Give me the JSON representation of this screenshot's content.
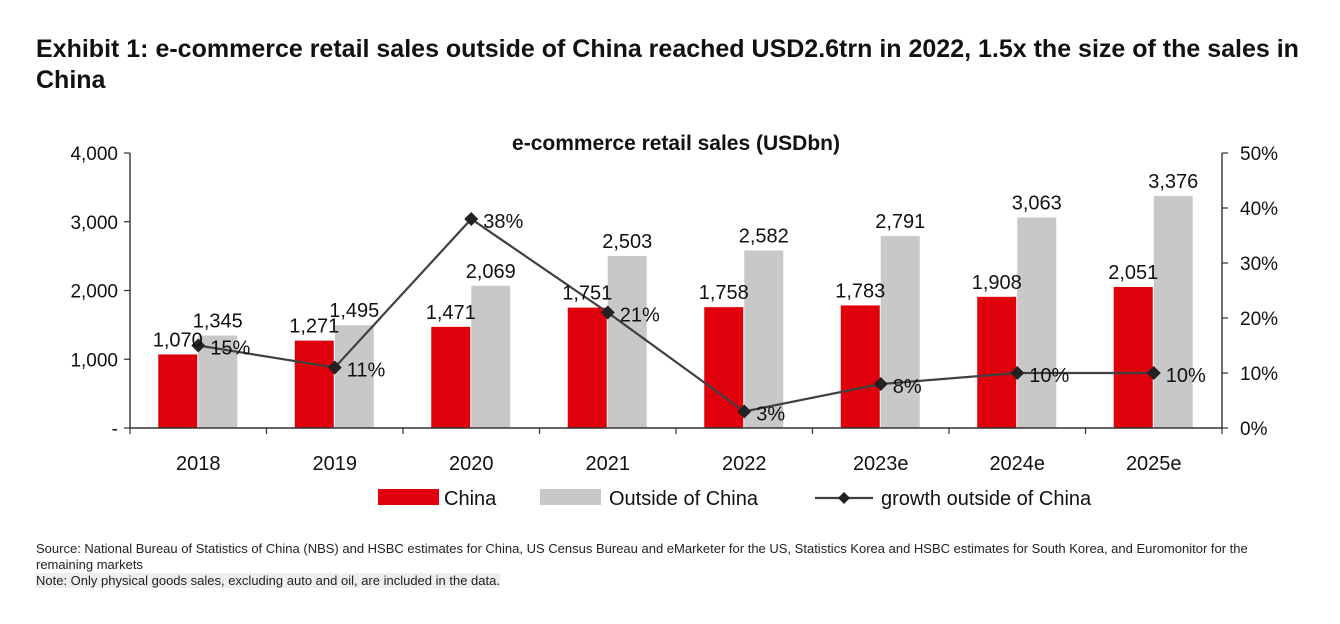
{
  "exhibit": {
    "title": "Exhibit 1: e-commerce retail sales outside of China reached USD2.6trn in 2022, 1.5x the size of the sales in China"
  },
  "chart_data": {
    "type": "bar",
    "title": "e-commerce retail sales (USDbn)",
    "categories": [
      "2018",
      "2019",
      "2020",
      "2021",
      "2022",
      "2023e",
      "2024e",
      "2025e"
    ],
    "series": [
      {
        "name": "China",
        "type": "bar",
        "color": "#e0000b",
        "values": [
          1070,
          1271,
          1471,
          1751,
          1758,
          1783,
          1908,
          2051
        ],
        "labels": [
          "1,070",
          "1,271",
          "1,471",
          "1,751",
          "1,758",
          "1,783",
          "1,908",
          "2,051"
        ]
      },
      {
        "name": "Outside of China",
        "type": "bar",
        "color": "#c8c8c8",
        "values": [
          1345,
          1495,
          2069,
          2503,
          2582,
          2791,
          3063,
          3376
        ],
        "labels": [
          "1,345",
          "1,495",
          "2,069",
          "2,503",
          "2,582",
          "2,791",
          "3,063",
          "3,376"
        ]
      },
      {
        "name": "growth outside of China",
        "type": "line",
        "axis": "right",
        "color": "#404040",
        "values": [
          15,
          11,
          38,
          21,
          3,
          8,
          10,
          10
        ],
        "labels": [
          "15%",
          "11%",
          "38%",
          "21%",
          "3%",
          "8%",
          "10%",
          "10%"
        ]
      }
    ],
    "y_left": {
      "ylim": [
        0,
        4000
      ],
      "ticks": [
        "-",
        "1,000",
        "2,000",
        "3,000",
        "4,000"
      ]
    },
    "y_right": {
      "ylim": [
        0,
        50
      ],
      "ticks": [
        "0%",
        "10%",
        "20%",
        "30%",
        "40%",
        "50%"
      ]
    },
    "grid": false,
    "legend_position": "bottom"
  },
  "notes": {
    "source": "Source: National Bureau of Statistics of China (NBS) and HSBC estimates for China, US Census Bureau and eMarketer for the US, Statistics Korea and HSBC estimates for South Korea, and Euromonitor for the remaining markets",
    "note": "Note: Only physical goods sales, excluding auto and oil, are included in the data."
  }
}
